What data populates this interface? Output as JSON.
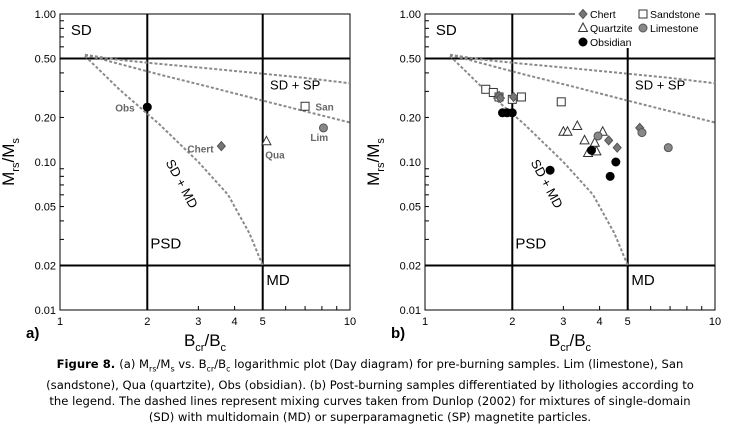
{
  "chart_data": [
    {
      "panel_label": "a)",
      "type": "scatter",
      "scale": "log-log",
      "xlabel": {
        "main": "B",
        "sub1": "cr",
        "mid": "/B",
        "sub2": "c"
      },
      "ylabel": {
        "main": "M",
        "sub1": "rs",
        "mid": "/M",
        "sub2": "s"
      },
      "xlim": [
        1,
        10
      ],
      "ylim": [
        0.01,
        1
      ],
      "x_ticks": [
        1,
        2,
        3,
        4,
        5,
        10
      ],
      "y_ticks": [
        {
          "value": 1,
          "label": "1.00"
        },
        {
          "value": 0.5,
          "label": "0.50"
        },
        {
          "value": 0.2,
          "label": "0.20"
        },
        {
          "value": 0.1,
          "label": "0.10"
        },
        {
          "value": 0.05,
          "label": "0.05"
        },
        {
          "value": 0.02,
          "label": "0.02"
        },
        {
          "value": 0.01,
          "label": "0.01"
        }
      ],
      "region_labels": [
        {
          "text": "SD",
          "x": 1.09,
          "y": 0.72
        },
        {
          "text": "SD + SP",
          "x": 5.3,
          "y": 0.31
        },
        {
          "text": "SD + MD",
          "x": 2.55,
          "y": 0.069,
          "rotate": 62
        },
        {
          "text": "PSD",
          "x": 2.05,
          "y": 0.026
        },
        {
          "text": "MD",
          "x": 5.15,
          "y": 0.0148
        }
      ],
      "series": [
        {
          "name": "Obsidian",
          "marker": "circle",
          "fill": "#000000",
          "points": [
            {
              "x": 2.0,
              "y": 0.235
            }
          ],
          "labels": [
            {
              "text": "Obs",
              "x": 1.55,
              "y": 0.233
            }
          ]
        },
        {
          "name": "Chert",
          "marker": "diamond",
          "fill": "#777777",
          "points": [
            {
              "x": 3.6,
              "y": 0.128
            }
          ],
          "labels": [
            {
              "text": "Chert",
              "x": 2.75,
              "y": 0.123
            }
          ]
        },
        {
          "name": "Quartzite",
          "marker": "triangle",
          "fill": "#ffffff",
          "points": [
            {
              "x": 5.15,
              "y": 0.138
            }
          ],
          "labels": [
            {
              "text": "Qua",
              "x": 5.1,
              "y": 0.112
            }
          ]
        },
        {
          "name": "Sandstone",
          "marker": "square",
          "fill": "#ffffff",
          "points": [
            {
              "x": 7.0,
              "y": 0.238
            }
          ],
          "labels": [
            {
              "text": "San",
              "x": 7.6,
              "y": 0.238
            }
          ]
        },
        {
          "name": "Limestone",
          "marker": "circle",
          "fill": "#888888",
          "points": [
            {
              "x": 8.1,
              "y": 0.17
            }
          ],
          "labels": [
            {
              "text": "Lim",
              "x": 7.3,
              "y": 0.147
            }
          ]
        }
      ]
    },
    {
      "panel_label": "b)",
      "type": "scatter",
      "scale": "log-log",
      "xlabel": {
        "main": "B",
        "sub1": "cr",
        "mid": "/B",
        "sub2": "c"
      },
      "ylabel": {
        "main": "M",
        "sub1": "rs",
        "mid": "/M",
        "sub2": "s"
      },
      "xlim": [
        1,
        10
      ],
      "ylim": [
        0.01,
        1
      ],
      "x_ticks": [
        1,
        2,
        3,
        4,
        5,
        10
      ],
      "y_ticks": [
        {
          "value": 1,
          "label": "1.00"
        },
        {
          "value": 0.5,
          "label": "0.50"
        },
        {
          "value": 0.2,
          "label": "0.20"
        },
        {
          "value": 0.1,
          "label": "0.10"
        },
        {
          "value": 0.05,
          "label": "0.05"
        },
        {
          "value": 0.02,
          "label": "0.02"
        },
        {
          "value": 0.01,
          "label": "0.01"
        }
      ],
      "region_labels": [
        {
          "text": "SD",
          "x": 1.09,
          "y": 0.72
        },
        {
          "text": "SD + SP",
          "x": 5.3,
          "y": 0.31
        },
        {
          "text": "SD + MD",
          "x": 2.55,
          "y": 0.069,
          "rotate": 62
        },
        {
          "text": "PSD",
          "x": 2.05,
          "y": 0.026
        },
        {
          "text": "MD",
          "x": 5.15,
          "y": 0.0148
        }
      ],
      "legend": {
        "placement": "top-right",
        "entries": [
          {
            "label": "Chert",
            "marker": "diamond",
            "fill": "#777777"
          },
          {
            "label": "Sandstone",
            "marker": "square",
            "fill": "#ffffff"
          },
          {
            "label": "Quartzite",
            "marker": "triangle",
            "fill": "#ffffff"
          },
          {
            "label": "Limestone",
            "marker": "circle",
            "fill": "#888888"
          },
          {
            "label": "Obsidian",
            "marker": "circle",
            "fill": "#000000"
          }
        ]
      },
      "series": [
        {
          "name": "Sandstone",
          "marker": "square",
          "fill": "#ffffff",
          "points": [
            {
              "x": 1.62,
              "y": 0.31
            },
            {
              "x": 1.72,
              "y": 0.295
            },
            {
              "x": 1.8,
              "y": 0.275
            },
            {
              "x": 2.0,
              "y": 0.265
            },
            {
              "x": 2.15,
              "y": 0.275
            },
            {
              "x": 2.95,
              "y": 0.255
            }
          ]
        },
        {
          "name": "Chert",
          "marker": "diamond",
          "fill": "#777777",
          "points": [
            {
              "x": 1.8,
              "y": 0.28
            },
            {
              "x": 1.82,
              "y": 0.27
            },
            {
              "x": 2.02,
              "y": 0.275
            },
            {
              "x": 4.3,
              "y": 0.14
            },
            {
              "x": 4.6,
              "y": 0.125
            },
            {
              "x": 5.5,
              "y": 0.17
            }
          ]
        },
        {
          "name": "Quartzite",
          "marker": "triangle",
          "fill": "#ffffff",
          "points": [
            {
              "x": 3.0,
              "y": 0.16
            },
            {
              "x": 3.1,
              "y": 0.16
            },
            {
              "x": 3.35,
              "y": 0.175
            },
            {
              "x": 3.55,
              "y": 0.14
            },
            {
              "x": 3.65,
              "y": 0.115
            },
            {
              "x": 3.9,
              "y": 0.118
            },
            {
              "x": 3.85,
              "y": 0.135
            },
            {
              "x": 4.1,
              "y": 0.16
            }
          ]
        },
        {
          "name": "Limestone",
          "marker": "circle",
          "fill": "#888888",
          "points": [
            {
              "x": 3.95,
              "y": 0.15
            },
            {
              "x": 5.6,
              "y": 0.158
            },
            {
              "x": 6.9,
              "y": 0.125
            }
          ]
        },
        {
          "name": "Obsidian",
          "marker": "circle",
          "fill": "#000000",
          "points": [
            {
              "x": 1.85,
              "y": 0.215
            },
            {
              "x": 1.92,
              "y": 0.215
            },
            {
              "x": 2.0,
              "y": 0.215
            },
            {
              "x": 2.7,
              "y": 0.088
            },
            {
              "x": 3.75,
              "y": 0.12
            },
            {
              "x": 4.55,
              "y": 0.1
            },
            {
              "x": 4.35,
              "y": 0.08
            }
          ]
        }
      ]
    }
  ],
  "caption": {
    "figure_label": "Figure 8.",
    "lines": [
      "(a) M_rs/M_s vs. B_cr/B_c logarithmic plot (Day diagram) for pre-burning samples. Lim (limestone), San",
      "(sandstone), Qua (quartzite), Obs (obsidian). (b) Post-burning samples differentiated by lithologies according to",
      "the legend. The dashed lines represent mixing curves taken from Dunlop (2002) for mixtures of single-domain",
      "(SD) with multidomain (MD) or superparamagnetic (SP) magnetite particles."
    ]
  }
}
